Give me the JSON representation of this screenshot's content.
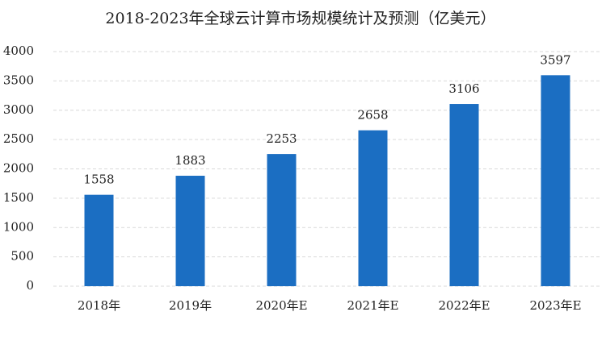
{
  "chart_data": {
    "type": "bar",
    "title": "2018-2023年全球云计算市场规模统计及预测（亿美元）",
    "categories": [
      "2018年",
      "2019年",
      "2020年E",
      "2021年E",
      "2022年E",
      "2023年E"
    ],
    "values": [
      1558,
      1883,
      2253,
      2658,
      3106,
      3597
    ],
    "color": "#1b6ec2",
    "ylim": [
      0,
      4000
    ],
    "yticks": [
      0,
      500,
      1000,
      1500,
      2000,
      2500,
      3000,
      3500,
      4000
    ],
    "grid": true
  }
}
